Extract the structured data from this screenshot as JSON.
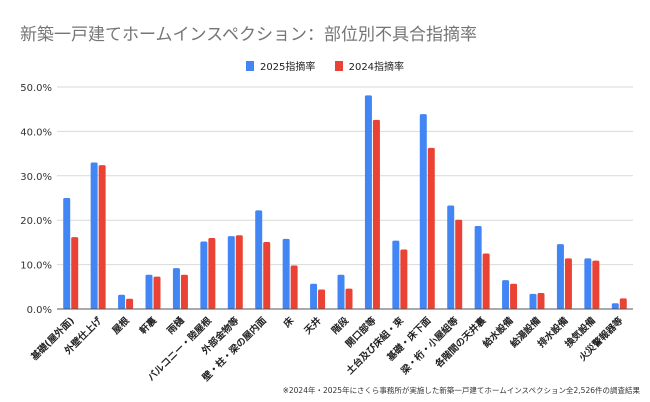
{
  "title": "新築一戸建てホームインスペクション：部位別不具合指摘率",
  "note": "※2024年・2025年にさくら事務所が実施した新築一戸建てホームインスペクション全2,526件の調査結果",
  "colors": {
    "s2025": "#4285f4",
    "s2024": "#ea4335",
    "grid": "#d9d9d9",
    "axis": "#555555"
  },
  "chart_data": {
    "type": "bar",
    "title": "新築一戸建てホームインスペクション：部位別不具合指摘率",
    "xlabel": "",
    "ylabel": "",
    "ylim": [
      0,
      50
    ],
    "yticks": [
      "0.0%",
      "10.0%",
      "20.0%",
      "30.0%",
      "40.0%",
      "50.0%"
    ],
    "grid": true,
    "legend_position": "top",
    "categories": [
      "基礎(屋外面)",
      "外壁仕上げ",
      "屋根",
      "軒裏",
      "雨樋",
      "バルコニー・陸屋根",
      "外部金物等",
      "壁・柱・梁の屋内面",
      "床",
      "天井",
      "階段",
      "開口部等",
      "土台及び床組・束",
      "基礎・床下面",
      "梁・桁・小屋組等",
      "各階間の天井裏",
      "給水設備",
      "給湯設備",
      "排水設備",
      "換気設備",
      "火災警報器等"
    ],
    "series": [
      {
        "name": "2025指摘率",
        "values": [
          25.0,
          33.0,
          3.2,
          7.7,
          9.2,
          15.2,
          16.4,
          22.2,
          15.8,
          5.7,
          7.7,
          48.1,
          15.4,
          43.9,
          23.3,
          18.7,
          6.5,
          3.4,
          14.6,
          11.4,
          1.3
        ]
      },
      {
        "name": "2024指摘率",
        "values": [
          16.2,
          32.4,
          2.3,
          7.3,
          7.7,
          16.0,
          16.6,
          15.1,
          9.8,
          4.4,
          4.6,
          42.6,
          13.4,
          36.3,
          20.1,
          12.5,
          5.7,
          3.6,
          11.4,
          10.9,
          2.4
        ]
      }
    ]
  }
}
